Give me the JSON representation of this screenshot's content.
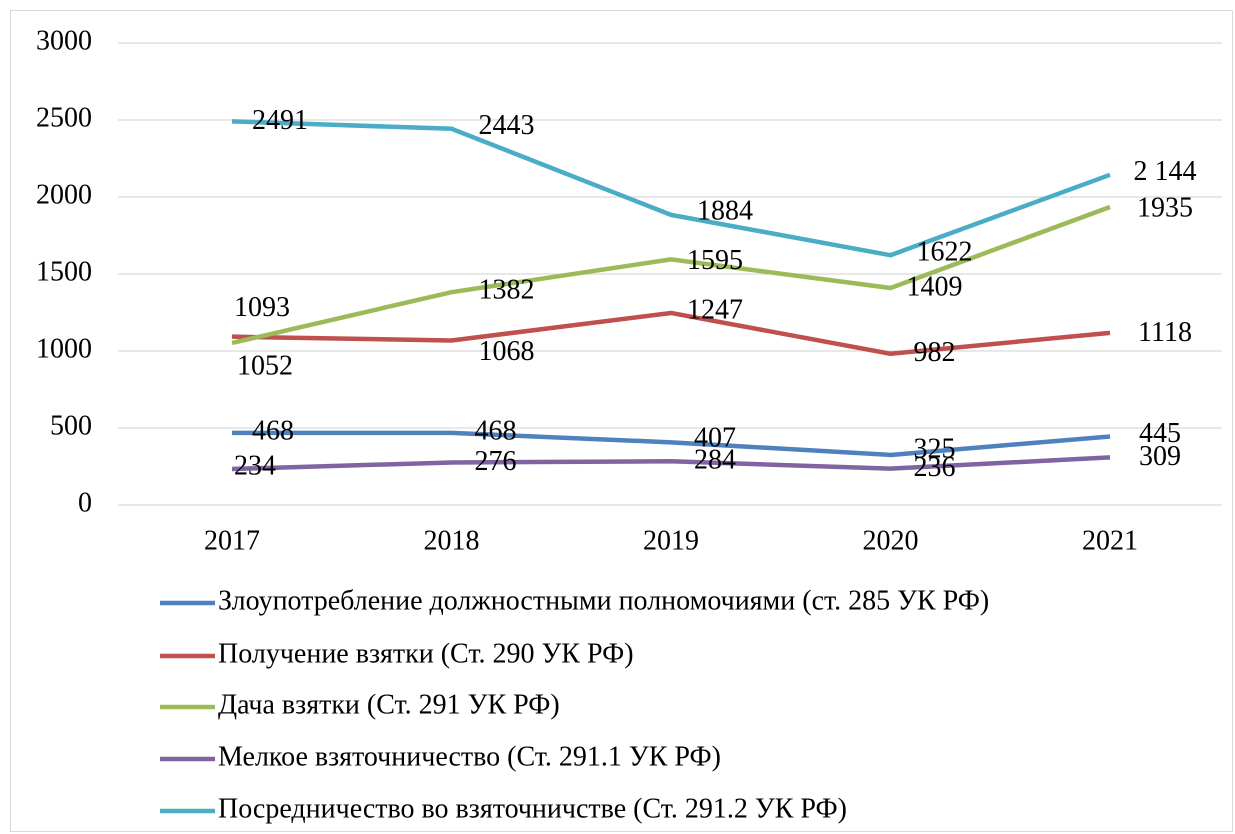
{
  "chart_data": {
    "type": "line",
    "categories": [
      "2017",
      "2018",
      "2019",
      "2020",
      "2021"
    ],
    "ylim": [
      0,
      3000
    ],
    "yticks": [
      0,
      500,
      1000,
      1500,
      2000,
      2500,
      3000
    ],
    "grid": true,
    "legend": "bottom",
    "series": [
      {
        "name": "Злоупотребление должностными полномочиями (ст. 285 УК РФ)",
        "color": "#4f81bd",
        "values": [
          468,
          468,
          407,
          325,
          445
        ]
      },
      {
        "name": "Получение взятки (Ст. 290 УК РФ)",
        "color": "#c0504d",
        "values": [
          1093,
          1068,
          1247,
          982,
          1118
        ]
      },
      {
        "name": "Дача взятки (Ст. 291 УК РФ)",
        "color": "#9bbb59",
        "values": [
          1052,
          1382,
          1595,
          1409,
          1935
        ]
      },
      {
        "name": "Мелкое взяточничество (Ст. 291.1 УК РФ)",
        "color": "#8064a2",
        "values": [
          234,
          276,
          284,
          236,
          309
        ]
      },
      {
        "name": "Посредничество во взяточничстве (Ст. 291.2 УК РФ)",
        "color": "#4bacc6",
        "values": [
          2491,
          2443,
          1884,
          1622,
          2144
        ],
        "value_labels": [
          "2491",
          "2443",
          "1884",
          "1622",
          "2 144"
        ]
      }
    ]
  }
}
